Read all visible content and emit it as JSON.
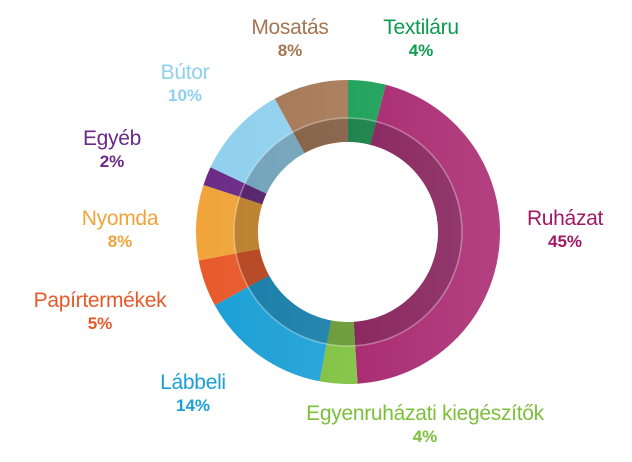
{
  "chart_data": {
    "type": "pie",
    "style": "donut",
    "title": "",
    "slices": [
      {
        "label": "Textiláru",
        "value": 4,
        "value_label": "4%",
        "color": "#0e9a4e"
      },
      {
        "label": "Ruházat",
        "value": 45,
        "value_label": "45%",
        "color": "#a21866"
      },
      {
        "label": "Egyenruházati kiegészítők",
        "value": 4,
        "value_label": "4%",
        "color": "#7cbf3a"
      },
      {
        "label": "Lábbeli",
        "value": 14,
        "value_label": "14%",
        "color": "#1a9fd6"
      },
      {
        "label": "Papírtermékek",
        "value": 5,
        "value_label": "5%",
        "color": "#e8592a"
      },
      {
        "label": "Nyomda",
        "value": 8,
        "value_label": "8%",
        "color": "#f0a43a"
      },
      {
        "label": "Egyéb",
        "value": 2,
        "value_label": "2%",
        "color": "#6a2a86"
      },
      {
        "label": "Bútor",
        "value": 10,
        "value_label": "10%",
        "color": "#8fd0ee"
      },
      {
        "label": "Mosatás",
        "value": 8,
        "value_label": "8%",
        "color": "#a47551"
      }
    ]
  }
}
